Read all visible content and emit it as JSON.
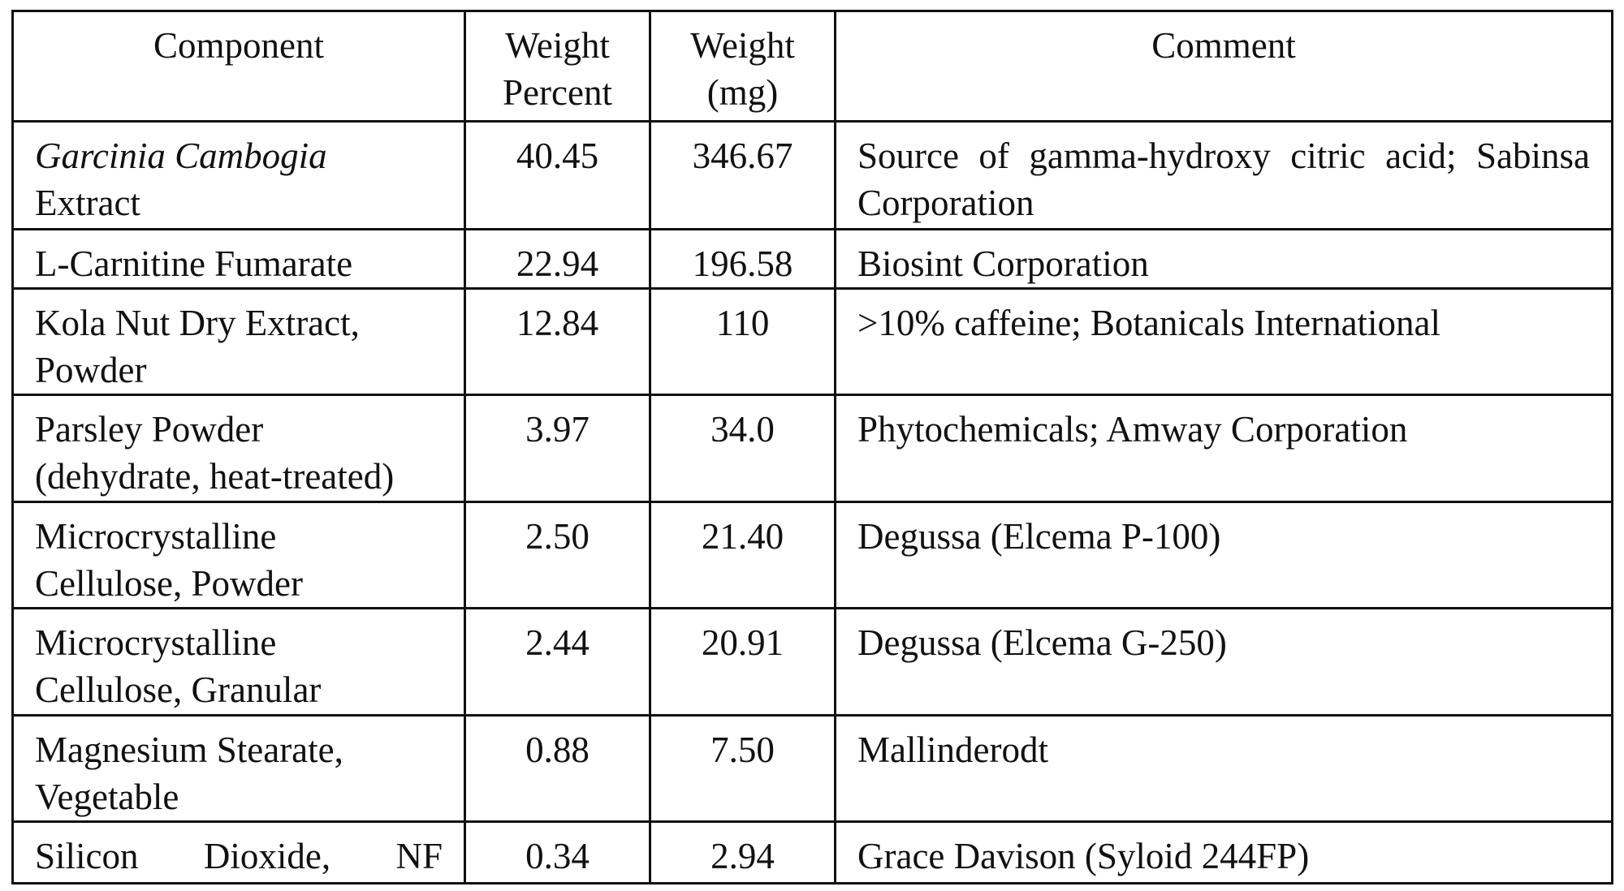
{
  "table": {
    "headers": {
      "component": "Component",
      "weight_percent": [
        "Weight",
        "Percent"
      ],
      "weight_mg": [
        "Weight",
        "(mg)"
      ],
      "comment": "Comment"
    },
    "rows": [
      {
        "component_lines": [
          "Garcinia Cambogia",
          "Extract"
        ],
        "weight_percent": "40.45",
        "weight_mg": "346.67",
        "comment": "Source of gamma-hydroxy citric acid; Sabinsa Corporation"
      },
      {
        "component_lines": [
          "L-Carnitine Fumarate"
        ],
        "weight_percent": "22.94",
        "weight_mg": "196.58",
        "comment": "Biosint Corporation"
      },
      {
        "component_lines": [
          "Kola Nut Dry Extract,",
          "Powder"
        ],
        "weight_percent": "12.84",
        "weight_mg": "110",
        "comment": ">10% caffeine; Botanicals International"
      },
      {
        "component_lines": [
          "Parsley Powder",
          "(dehydrate, heat-treated)"
        ],
        "weight_percent": "3.97",
        "weight_mg": "34.0",
        "comment": "Phytochemicals; Amway Corporation"
      },
      {
        "component_lines": [
          "Microcrystalline",
          "Cellulose, Powder"
        ],
        "weight_percent": "2.50",
        "weight_mg": "21.40",
        "comment": "Degussa (Elcema P-100)"
      },
      {
        "component_lines": [
          "Microcrystalline",
          "Cellulose, Granular"
        ],
        "weight_percent": "2.44",
        "weight_mg": "20.91",
        "comment": "Degussa (Elcema G-250)"
      },
      {
        "component_lines": [
          "Magnesium Stearate,",
          "Vegetable"
        ],
        "weight_percent": "0.88",
        "weight_mg": "7.50",
        "comment": "Mallinderodt"
      },
      {
        "component_lines": [
          "Silicon Dioxide, NF"
        ],
        "weight_percent": "0.34",
        "weight_mg": "2.94",
        "comment": "Grace Davison (Syloid 244FP)"
      }
    ]
  }
}
